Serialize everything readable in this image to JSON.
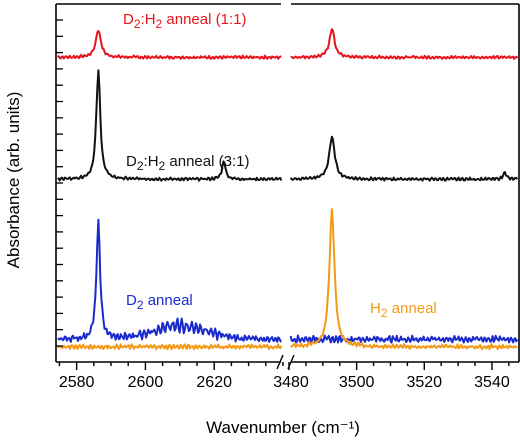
{
  "chart_data": {
    "type": "line",
    "title": "",
    "xlabel": "Wavenumber (cm⁻¹)",
    "ylabel": "Absorbance (arb. units)",
    "x_axis_break": true,
    "xlim_left": [
      2574,
      2640
    ],
    "xlim_right": [
      3480,
      3548
    ],
    "xticks_left": [
      "2580",
      "2600",
      "2620"
    ],
    "xticks_right": [
      "3480",
      "3500",
      "3520",
      "3540"
    ],
    "yticks_visible": false,
    "grid": false,
    "legend": "none",
    "panels": [
      {
        "label": "D2:H2 anneal (1:1)",
        "color": "#e8141c",
        "baseline": 0.86,
        "peaks_left": [
          {
            "x": 2586.3,
            "h": 0.072,
            "w": 0.9
          }
        ],
        "peaks_right": [
          {
            "x": 3492.7,
            "h": 0.075,
            "w": 0.9
          }
        ],
        "noise": 0.004
      },
      {
        "label": "D2:H2 anneal (3:1)",
        "color": "#111111",
        "baseline": 0.54,
        "peaks_left": [
          {
            "x": 2586.3,
            "h": 0.285,
            "w": 0.7
          },
          {
            "x": 2622.8,
            "h": 0.048,
            "w": 0.6
          }
        ],
        "peaks_right": [
          {
            "x": 3492.7,
            "h": 0.11,
            "w": 1.0
          },
          {
            "x": 3543.8,
            "h": 0.02,
            "w": 0.5
          }
        ],
        "noise": 0.004
      },
      {
        "label": "D2 anneal",
        "color": "#1a2bcc",
        "baseline": 0.12,
        "peaks_left": [
          {
            "x": 2586.3,
            "h": 0.305,
            "w": 0.65
          }
        ],
        "peaks_right": [],
        "broad_band": {
          "x": 2610,
          "h": 0.05,
          "w": 11
        },
        "noise": 0.009
      },
      {
        "label": "H2 anneal",
        "color": "#f29a17",
        "baseline": 0.1,
        "peaks_left": [],
        "peaks_right": [
          {
            "x": 3492.7,
            "h": 0.36,
            "w": 0.9
          }
        ],
        "noise": 0.006
      }
    ],
    "ylim": [
      0.06,
      1.0
    ]
  }
}
